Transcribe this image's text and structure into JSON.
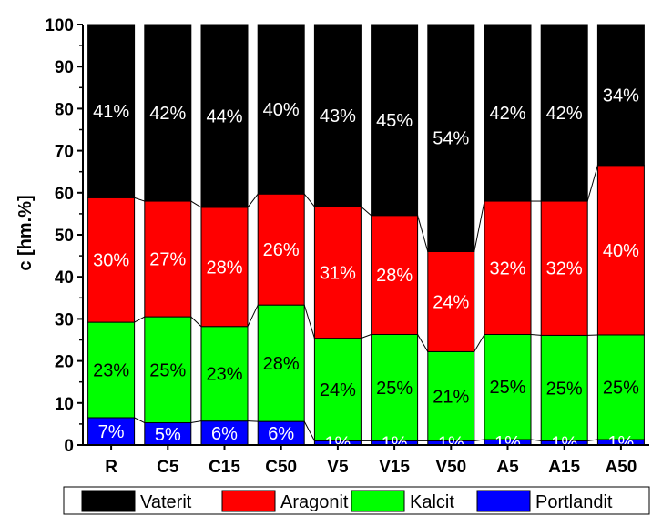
{
  "chart_data": {
    "type": "bar",
    "stacked": true,
    "title": "",
    "xlabel": "",
    "ylabel": "c [hm.%]",
    "ylim": [
      0,
      100
    ],
    "yticks": [
      0,
      10,
      20,
      30,
      40,
      50,
      60,
      70,
      80,
      90,
      100
    ],
    "grid": false,
    "legend_position": "bottom",
    "categories": [
      "R",
      "C5",
      "C15",
      "C50",
      "V5",
      "V15",
      "V50",
      "A5",
      "A15",
      "A50"
    ],
    "series": [
      {
        "name": "Portlandit",
        "color": "#0000ff",
        "label_color": "#ffffff",
        "values": [
          6.5,
          5.3,
          5.7,
          5.6,
          1.0,
          1.0,
          1.0,
          1.3,
          1.0,
          1.3
        ],
        "labels": [
          "7%",
          "5%",
          "6%",
          "6%",
          "1%",
          "1%",
          "1%",
          "1%",
          "1%",
          "1%"
        ]
      },
      {
        "name": "Kalcit",
        "color": "#00ff00",
        "label_color": "#000000",
        "values": [
          22.7,
          25.2,
          22.5,
          27.7,
          24.4,
          25.3,
          21.2,
          25.0,
          25.1,
          24.9
        ],
        "labels": [
          "23%",
          "25%",
          "23%",
          "28%",
          "24%",
          "25%",
          "21%",
          "25%",
          "25%",
          "25%"
        ]
      },
      {
        "name": "Aragonit",
        "color": "#ff0000",
        "label_color": "#ffffff",
        "values": [
          29.6,
          27.5,
          28.3,
          26.4,
          31.3,
          28.3,
          23.8,
          31.7,
          31.9,
          40.3
        ],
        "labels": [
          "30%",
          "27%",
          "28%",
          "26%",
          "31%",
          "28%",
          "24%",
          "32%",
          "32%",
          "40%"
        ]
      },
      {
        "name": "Vaterit",
        "color": "#000000",
        "label_color": "#ffffff",
        "values": [
          41.2,
          42.0,
          43.5,
          40.3,
          43.3,
          45.4,
          54.0,
          42.0,
          42.0,
          33.5
        ],
        "labels": [
          "41%",
          "42%",
          "44%",
          "40%",
          "43%",
          "45%",
          "54%",
          "42%",
          "42%",
          "34%"
        ]
      }
    ],
    "legend_order": [
      "Vaterit",
      "Aragonit",
      "Kalcit",
      "Portlandit"
    ]
  }
}
